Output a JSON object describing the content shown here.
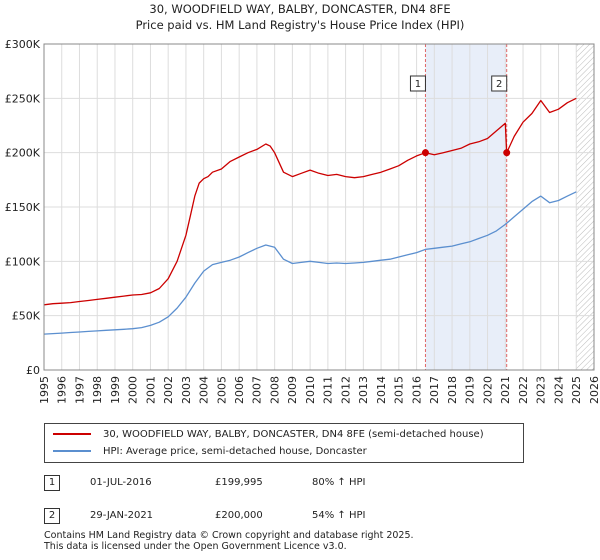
{
  "chart_data": {
    "type": "line",
    "title": "30, WOODFIELD WAY, BALBY, DONCASTER, DN4 8FE",
    "subtitle": "Price paid vs. HM Land Registry's House Price Index (HPI)",
    "xlabel": "",
    "ylabel": "",
    "xlim": [
      1995,
      2026
    ],
    "ylim": [
      0,
      300000
    ],
    "y_ticks": [
      0,
      50000,
      100000,
      150000,
      200000,
      250000,
      300000
    ],
    "y_tick_labels": [
      "£0",
      "£50K",
      "£100K",
      "£150K",
      "£200K",
      "£250K",
      "£300K"
    ],
    "x_ticks": [
      1995,
      1996,
      1997,
      1998,
      1999,
      2000,
      2001,
      2002,
      2003,
      2004,
      2005,
      2006,
      2007,
      2008,
      2009,
      2010,
      2011,
      2012,
      2013,
      2014,
      2015,
      2016,
      2017,
      2018,
      2019,
      2020,
      2021,
      2022,
      2023,
      2024,
      2025,
      2026
    ],
    "x_tick_labels": [
      "1995",
      "1996",
      "1997",
      "1998",
      "1999",
      "2000",
      "2001",
      "2002",
      "2003",
      "2004",
      "2005",
      "2006",
      "2007",
      "2008",
      "2009",
      "2010",
      "2011",
      "2012",
      "2013",
      "2014",
      "2015",
      "2016",
      "2017",
      "2018",
      "2019",
      "2020",
      "2021",
      "2022",
      "2023",
      "2024",
      "2025",
      "2026"
    ],
    "grid": true,
    "shaded_period": [
      2016.5,
      2021.08
    ],
    "future_hatch_from": 2025.0,
    "series": [
      {
        "name": "30, WOODFIELD WAY, BALBY, DONCASTER, DN4 8FE (semi-detached house)",
        "color": "#cc0000",
        "x": [
          1995.0,
          1995.5,
          1996.0,
          1996.5,
          1997.0,
          1997.5,
          1998.0,
          1998.5,
          1999.0,
          1999.5,
          2000.0,
          2000.5,
          2001.0,
          2001.5,
          2002.0,
          2002.5,
          2003.0,
          2003.25,
          2003.5,
          2003.75,
          2004.0,
          2004.25,
          2004.5,
          2005.0,
          2005.5,
          2006.0,
          2006.5,
          2007.0,
          2007.5,
          2007.75,
          2008.0,
          2008.5,
          2009.0,
          2009.5,
          2010.0,
          2010.5,
          2011.0,
          2011.5,
          2012.0,
          2012.5,
          2013.0,
          2013.5,
          2014.0,
          2014.5,
          2015.0,
          2015.5,
          2016.0,
          2016.5,
          2017.0,
          2017.5,
          2018.0,
          2018.5,
          2019.0,
          2019.5,
          2020.0,
          2020.5,
          2021.0,
          2021.08,
          2021.5,
          2022.0,
          2022.5,
          2023.0,
          2023.5,
          2024.0,
          2024.5,
          2025.0
        ],
        "values": [
          60000,
          61000,
          61500,
          62000,
          63000,
          64000,
          65000,
          66000,
          67000,
          68000,
          69000,
          69500,
          71000,
          75000,
          84000,
          100000,
          124000,
          142000,
          160000,
          172000,
          176000,
          178000,
          182000,
          185000,
          192000,
          196000,
          200000,
          203000,
          208000,
          206000,
          200000,
          182000,
          178000,
          181000,
          184000,
          181000,
          179000,
          180000,
          178000,
          177000,
          178000,
          180000,
          182000,
          185000,
          188000,
          193000,
          197000,
          199995,
          198000,
          200000,
          202000,
          204000,
          208000,
          210000,
          213000,
          220000,
          227000,
          200000,
          215000,
          228000,
          236000,
          248000,
          237000,
          240000,
          246000,
          250000
        ]
      },
      {
        "name": "HPI: Average price, semi-detached house, Doncaster",
        "color": "#5b8fcf",
        "x": [
          1995.0,
          1995.5,
          1996.0,
          1996.5,
          1997.0,
          1997.5,
          1998.0,
          1998.5,
          1999.0,
          1999.5,
          2000.0,
          2000.5,
          2001.0,
          2001.5,
          2002.0,
          2002.5,
          2003.0,
          2003.5,
          2004.0,
          2004.5,
          2005.0,
          2005.5,
          2006.0,
          2006.5,
          2007.0,
          2007.5,
          2008.0,
          2008.5,
          2009.0,
          2009.5,
          2010.0,
          2010.5,
          2011.0,
          2011.5,
          2012.0,
          2012.5,
          2013.0,
          2013.5,
          2014.0,
          2014.5,
          2015.0,
          2015.5,
          2016.0,
          2016.5,
          2017.0,
          2017.5,
          2018.0,
          2018.5,
          2019.0,
          2019.5,
          2020.0,
          2020.5,
          2021.0,
          2021.5,
          2022.0,
          2022.5,
          2023.0,
          2023.5,
          2024.0,
          2024.5,
          2025.0
        ],
        "values": [
          33000,
          33500,
          34000,
          34500,
          35000,
          35500,
          36000,
          36500,
          37000,
          37500,
          38000,
          39000,
          41000,
          44000,
          49000,
          57000,
          67000,
          80000,
          91000,
          97000,
          99000,
          101000,
          104000,
          108000,
          112000,
          115000,
          113000,
          102000,
          98000,
          99000,
          100000,
          99000,
          98000,
          98500,
          98000,
          98500,
          99000,
          100000,
          101000,
          102000,
          104000,
          106000,
          108000,
          111000,
          112000,
          113000,
          114000,
          116000,
          118000,
          121000,
          124000,
          128000,
          134000,
          141000,
          148000,
          155000,
          160000,
          154000,
          156000,
          160000,
          164000
        ]
      }
    ],
    "markers": [
      {
        "label": "1",
        "x": 2016.5,
        "value": 199995
      },
      {
        "label": "2",
        "x": 2021.08,
        "value": 200000
      }
    ]
  },
  "legend": {
    "items": [
      {
        "label": "30, WOODFIELD WAY, BALBY, DONCASTER, DN4 8FE (semi-detached house)",
        "color": "#cc0000"
      },
      {
        "label": "HPI: Average price, semi-detached house, Doncaster",
        "color": "#5b8fcf"
      }
    ]
  },
  "sales": [
    {
      "num": "1",
      "date": "01-JUL-2016",
      "price": "£199,995",
      "hpi": "80% ↑ HPI"
    },
    {
      "num": "2",
      "date": "29-JAN-2021",
      "price": "£200,000",
      "hpi": "54% ↑ HPI"
    }
  ],
  "footer": {
    "line1": "Contains HM Land Registry data © Crown copyright and database right 2025.",
    "line2": "This data is licensed under the Open Government Licence v3.0."
  }
}
